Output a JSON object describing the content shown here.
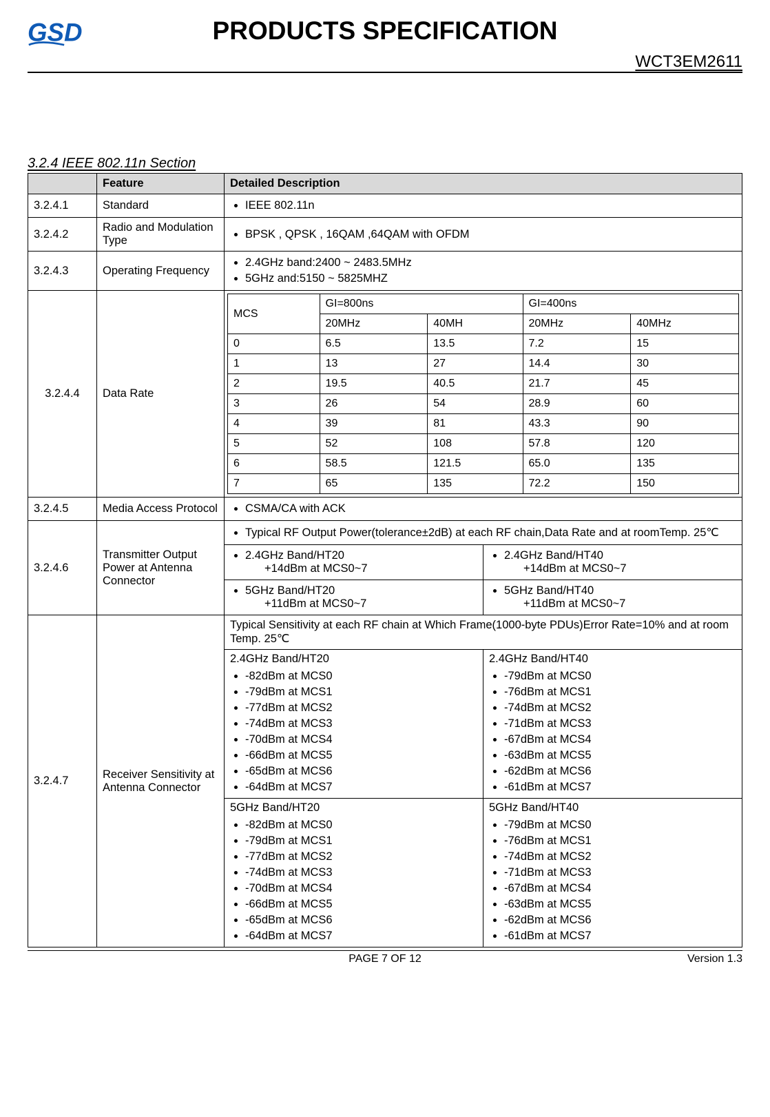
{
  "header": {
    "title": "PRODUCTS SPECIFICATION",
    "model": "WCT3EM2611",
    "logo_text": "GSD",
    "logo_color": "#0f5ab5"
  },
  "section": {
    "title": "3.2.4 IEEE 802.11n Section",
    "columns": {
      "num": "",
      "feature": "Feature",
      "desc": "Detailed Description"
    }
  },
  "rows": {
    "standard": {
      "num": "3.2.4.1",
      "feature": "Standard",
      "desc": "IEEE 802.11n"
    },
    "radio": {
      "num": "3.2.4.2",
      "feature": "Radio and Modulation Type",
      "desc": "BPSK , QPSK , 16QAM ,64QAM with OFDM"
    },
    "freq": {
      "num": "3.2.4.3",
      "feature": "Operating Frequency",
      "b1": "2.4GHz band:2400 ~ 2483.5MHz",
      "b2": "5GHz and:5150 ~ 5825MHZ"
    },
    "datarate": {
      "num": "3.2.4.4",
      "feature": "Data Rate",
      "header": {
        "mcs": "MCS",
        "gi800": "GI=800ns",
        "gi400": "GI=400ns",
        "c20a": "20MHz",
        "c40a": "40MH",
        "c20b": "20MHz",
        "c40b": "40MHz"
      },
      "rows": [
        {
          "mcs": "0",
          "a": "6.5",
          "b": "13.5",
          "c": "7.2",
          "d": "15"
        },
        {
          "mcs": "1",
          "a": "13",
          "b": "27",
          "c": "14.4",
          "d": "30"
        },
        {
          "mcs": "2",
          "a": "19.5",
          "b": "40.5",
          "c": "21.7",
          "d": "45"
        },
        {
          "mcs": "3",
          "a": "26",
          "b": "54",
          "c": "28.9",
          "d": "60"
        },
        {
          "mcs": "4",
          "a": "39",
          "b": "81",
          "c": "43.3",
          "d": "90"
        },
        {
          "mcs": "5",
          "a": "52",
          "b": "108",
          "c": "57.8",
          "d": "120"
        },
        {
          "mcs": "6",
          "a": "58.5",
          "b": "121.5",
          "c": "65.0",
          "d": "135"
        },
        {
          "mcs": "7",
          "a": "65",
          "b": "135",
          "c": "72.2",
          "d": "150"
        }
      ]
    },
    "mac": {
      "num": "3.2.4.5",
      "feature": "Media Access Protocol",
      "desc": "CSMA/CA with ACK"
    },
    "tx": {
      "num": "3.2.4.6",
      "feature": "Transmitter Output Power at Antenna Connector",
      "top": "Typical RF Output Power(tolerance±2dB) at each RF chain,Data Rate and at roomTemp. 25℃",
      "r1l_t": "2.4GHz Band/HT20",
      "r1l_v": "+14dBm at MCS0~7",
      "r1r_t": "2.4GHz Band/HT40",
      "r1r_v": "+14dBm at MCS0~7",
      "r2l_t": "5GHz Band/HT20",
      "r2l_v": "+11dBm at MCS0~7",
      "r2r_t": "5GHz Band/HT40",
      "r2r_v": "+11dBm at MCS0~7"
    },
    "rx": {
      "num": "3.2.4.7",
      "feature": "Receiver Sensitivity at Antenna Connector",
      "top": "Typical Sensitivity at each RF chain at Which Frame(1000-byte PDUs)Error Rate=10% and at room Temp. 25℃",
      "g24ht20_t": "2.4GHz Band/HT20",
      "g24ht40_t": "2.4GHz Band/HT40",
      "g5ht20_t": "5GHz Band/HT20",
      "g5ht40_t": "5GHz Band/HT40",
      "ht20": [
        "-82dBm at MCS0",
        "-79dBm at MCS1",
        "-77dBm at MCS2",
        "-74dBm at MCS3",
        "-70dBm at MCS4",
        "-66dBm at MCS5",
        "-65dBm at MCS6",
        "-64dBm at MCS7"
      ],
      "ht40": [
        "-79dBm at MCS0",
        "-76dBm at MCS1",
        "-74dBm at MCS2",
        "-71dBm at MCS3",
        "-67dBm at MCS4",
        "-63dBm at MCS5",
        "-62dBm at MCS6",
        "-61dBm at MCS7"
      ]
    }
  },
  "footer": {
    "page": "PAGE    7    OF    12",
    "version": "Version  1.3"
  }
}
